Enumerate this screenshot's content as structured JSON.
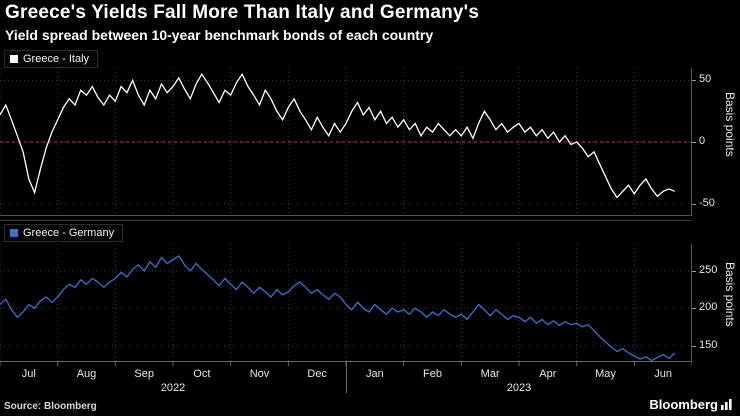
{
  "header": {
    "title": "Greece's Yields Fall More Than Italy and Germany's",
    "subtitle": "Yield spread between 10-year benchmark bonds of each country"
  },
  "footer": {
    "source": "Source: Bloomberg",
    "brand": "Bloomberg"
  },
  "x_axis": {
    "months": [
      "Jul",
      "Aug",
      "Sep",
      "Oct",
      "Nov",
      "Dec",
      "Jan",
      "Feb",
      "Mar",
      "Apr",
      "May",
      "Jun"
    ],
    "years": [
      "2022",
      "2023"
    ]
  },
  "chart_data": [
    {
      "type": "line",
      "legend": "Greece - Italy",
      "color": "#ffffff",
      "ylabel": "Basis points",
      "ylim": [
        -60,
        60
      ],
      "yticks": [
        50,
        0,
        -50
      ],
      "zero_line": {
        "value": 0,
        "color": "#e0312e"
      },
      "grid": true,
      "legend_position": "top-left",
      "x_span": 0.975,
      "values": [
        22,
        30,
        18,
        5,
        -8,
        -30,
        -41,
        -22,
        -5,
        8,
        18,
        28,
        35,
        30,
        42,
        38,
        45,
        36,
        30,
        38,
        33,
        45,
        40,
        50,
        38,
        30,
        42,
        35,
        47,
        40,
        45,
        52,
        43,
        35,
        47,
        55,
        48,
        40,
        32,
        42,
        38,
        48,
        55,
        45,
        38,
        30,
        42,
        35,
        25,
        18,
        28,
        35,
        25,
        18,
        10,
        20,
        12,
        5,
        15,
        8,
        15,
        25,
        32,
        22,
        28,
        18,
        25,
        15,
        20,
        12,
        18,
        10,
        15,
        5,
        12,
        8,
        15,
        10,
        5,
        10,
        5,
        12,
        3,
        15,
        25,
        18,
        10,
        15,
        8,
        12,
        15,
        8,
        12,
        5,
        10,
        3,
        8,
        0,
        5,
        -2,
        0,
        -5,
        -12,
        -8,
        -18,
        -28,
        -38,
        -45,
        -40,
        -35,
        -42,
        -35,
        -30,
        -38,
        -44,
        -40,
        -38,
        -40
      ]
    },
    {
      "type": "line",
      "legend": "Greece - Germany",
      "color": "#3f6fd1",
      "ylabel": "Basis points",
      "ylim": [
        128,
        286
      ],
      "yticks": [
        250,
        200,
        150
      ],
      "grid": true,
      "legend_position": "top-left",
      "x_span": 0.975,
      "values": [
        205,
        212,
        198,
        188,
        195,
        205,
        200,
        210,
        215,
        208,
        215,
        225,
        232,
        228,
        238,
        232,
        240,
        235,
        228,
        235,
        240,
        248,
        242,
        252,
        258,
        250,
        262,
        255,
        268,
        260,
        265,
        270,
        258,
        250,
        260,
        252,
        245,
        238,
        230,
        240,
        232,
        225,
        235,
        228,
        220,
        228,
        222,
        215,
        225,
        218,
        222,
        230,
        235,
        228,
        220,
        225,
        218,
        212,
        220,
        215,
        205,
        198,
        208,
        200,
        195,
        205,
        198,
        192,
        200,
        195,
        198,
        192,
        200,
        195,
        188,
        195,
        190,
        198,
        192,
        188,
        192,
        185,
        195,
        205,
        198,
        190,
        198,
        192,
        185,
        190,
        188,
        182,
        188,
        180,
        185,
        178,
        183,
        177,
        182,
        178,
        180,
        175,
        178,
        170,
        162,
        155,
        148,
        142,
        146,
        140,
        136,
        132,
        135,
        130,
        134,
        138,
        133,
        140
      ]
    }
  ]
}
